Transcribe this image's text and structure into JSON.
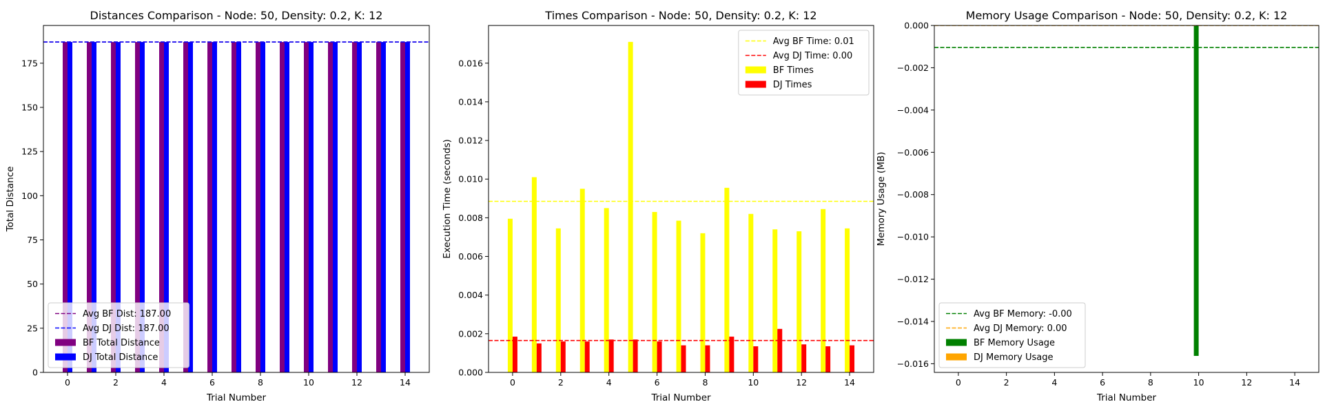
{
  "chart_data": [
    {
      "type": "bar",
      "title": "Distances Comparison - Node: 50, Density: 0.2, K: 12",
      "xlabel": "Trial Number",
      "ylabel": "Total Distance",
      "x": [
        0,
        1,
        2,
        3,
        4,
        5,
        6,
        7,
        8,
        9,
        10,
        11,
        12,
        13,
        14
      ],
      "xlim": [
        -1,
        15
      ],
      "ylim": [
        0,
        196.35
      ],
      "xticks": [
        "0",
        "2",
        "4",
        "6",
        "8",
        "10",
        "12",
        "14"
      ],
      "yticks": [
        "0",
        "25",
        "50",
        "75",
        "100",
        "125",
        "150",
        "175"
      ],
      "series": [
        {
          "name": "BF Total Distance",
          "color": "#800080",
          "offset": -0.1,
          "values": [
            187,
            187,
            187,
            187,
            187,
            187,
            187,
            187,
            187,
            187,
            187,
            187,
            187,
            187,
            187
          ]
        },
        {
          "name": "DJ Total Distance",
          "color": "#0000ff",
          "offset": 0.1,
          "values": [
            187,
            187,
            187,
            187,
            187,
            187,
            187,
            187,
            187,
            187,
            187,
            187,
            187,
            187,
            187
          ]
        }
      ],
      "hlines": [
        {
          "name": "Avg BF Dist: 187.00",
          "value": 187.0,
          "color": "#800080"
        },
        {
          "name": "Avg DJ Dist: 187.00",
          "value": 187.0,
          "color": "#0000ff"
        }
      ],
      "legend": "lower-left",
      "grid": false
    },
    {
      "type": "bar",
      "title": "Times Comparison - Node: 50, Density: 0.2, K: 12",
      "xlabel": "Trial Number",
      "ylabel": "Execution Time (seconds)",
      "x": [
        0,
        1,
        2,
        3,
        4,
        5,
        6,
        7,
        8,
        9,
        10,
        11,
        12,
        13,
        14
      ],
      "xlim": [
        -1,
        15
      ],
      "ylim": [
        0,
        0.01795
      ],
      "xticks": [
        "0",
        "2",
        "4",
        "6",
        "8",
        "10",
        "12",
        "14"
      ],
      "yticks": [
        "0.000",
        "0.002",
        "0.004",
        "0.006",
        "0.008",
        "0.010",
        "0.012",
        "0.014",
        "0.016"
      ],
      "series": [
        {
          "name": "BF Times",
          "color": "#ffff00",
          "offset": -0.1,
          "values": [
            0.00795,
            0.0101,
            0.00745,
            0.0095,
            0.0085,
            0.0171,
            0.0083,
            0.00785,
            0.0072,
            0.00955,
            0.0082,
            0.0074,
            0.0073,
            0.00845,
            0.00745
          ]
        },
        {
          "name": "DJ Times",
          "color": "#ff0000",
          "offset": 0.1,
          "values": [
            0.00185,
            0.0015,
            0.0016,
            0.0016,
            0.0017,
            0.0017,
            0.0016,
            0.0014,
            0.0014,
            0.00185,
            0.00135,
            0.00225,
            0.00145,
            0.00135,
            0.0014
          ]
        }
      ],
      "hlines": [
        {
          "name": "Avg BF Time: 0.01",
          "value": 0.00885,
          "color": "#ffff00"
        },
        {
          "name": "Avg DJ Time: 0.00",
          "value": 0.00165,
          "color": "#ff0000"
        }
      ],
      "legend": "top-right",
      "grid": false
    },
    {
      "type": "bar",
      "title": "Memory Usage Comparison - Node: 50, Density: 0.2, K: 12",
      "xlabel": "Trial Number",
      "ylabel": "Memory Usage (MB)",
      "x": [
        0,
        1,
        2,
        3,
        4,
        5,
        6,
        7,
        8,
        9,
        10,
        11,
        12,
        13,
        14
      ],
      "xlim": [
        -1,
        15
      ],
      "ylim": [
        -0.01641,
        0
      ],
      "xticks": [
        "0",
        "2",
        "4",
        "6",
        "8",
        "10",
        "12",
        "14"
      ],
      "yticks": [
        "0.000",
        "−0.002",
        "−0.004",
        "−0.006",
        "−0.008",
        "−0.010",
        "−0.012",
        "−0.014",
        "−0.016"
      ],
      "series": [
        {
          "name": "BF Memory Usage",
          "color": "#008000",
          "offset": -0.1,
          "values": [
            0,
            0,
            0,
            0,
            0,
            0,
            0,
            0,
            0,
            0,
            -0.01563,
            0,
            0,
            0,
            0
          ]
        },
        {
          "name": "DJ Memory Usage",
          "color": "#ffa500",
          "offset": 0.1,
          "values": [
            0,
            0,
            0,
            0,
            0,
            0,
            0,
            0,
            0,
            0,
            0,
            0,
            0,
            0,
            0
          ]
        }
      ],
      "hlines": [
        {
          "name": "Avg BF Memory: -0.00",
          "value": -0.00104,
          "color": "#008000"
        },
        {
          "name": "Avg DJ Memory: 0.00",
          "value": 0.0,
          "color": "#ffa500"
        }
      ],
      "legend": "lower-left",
      "grid": false
    }
  ]
}
